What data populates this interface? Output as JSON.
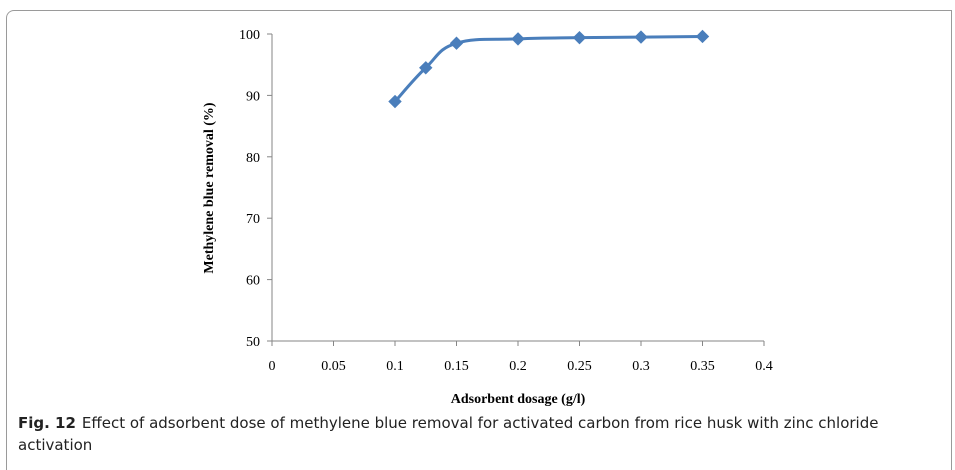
{
  "chart_data": {
    "type": "line",
    "xlabel": "Adsorbent dosage (g/l)",
    "ylabel": "Methylene blue removal (%)",
    "xlim": [
      0,
      0.4
    ],
    "ylim": [
      50,
      100
    ],
    "x_ticks": [
      "0",
      "0.05",
      "0.1",
      "0.15",
      "0.2",
      "0.25",
      "0.3",
      "0.35",
      "0.4"
    ],
    "y_ticks": [
      "50",
      "60",
      "70",
      "80",
      "90",
      "100"
    ],
    "series": [
      {
        "x": [
          0.1,
          0.125,
          0.15,
          0.2,
          0.25,
          0.3,
          0.35
        ],
        "y": [
          89.0,
          94.5,
          98.5,
          99.2,
          99.4,
          99.5,
          99.6
        ],
        "color": "#4a7ebb",
        "marker": "diamond",
        "smooth": true
      }
    ],
    "grid": false,
    "legend": "none"
  },
  "caption": {
    "label": "Fig. 12",
    "text": "Effect of adsorbent dose of methylene blue removal for activated carbon from rice husk with zinc chloride activation"
  }
}
